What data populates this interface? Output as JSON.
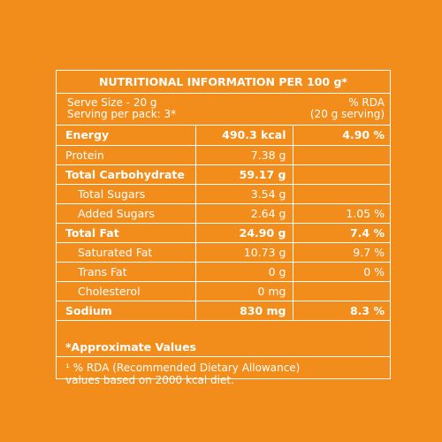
{
  "title": "NUTRITIONAL INFORMATION PER 100 g*",
  "header": {
    "serve_size": "Serve Size - 20 g",
    "serving_per_pack": "Serving per pack: 3*",
    "rda_label": "% RDA",
    "rda_basis": "(20 g serving)"
  },
  "rows": [
    {
      "name": "Energy",
      "amount": "490.3 kcal",
      "rda": "4.90 %",
      "bold": true,
      "sub": false
    },
    {
      "name": "Protein",
      "amount": "7.38 g",
      "rda": "",
      "bold": false,
      "sub": false
    },
    {
      "name": "Total Carbohydrate",
      "amount": "59.17 g",
      "rda": "",
      "bold": true,
      "sub": false
    },
    {
      "name": "Total Sugars",
      "amount": "3.54 g",
      "rda": "",
      "bold": false,
      "sub": true
    },
    {
      "name": "Added Sugars",
      "amount": "2.64 g",
      "rda": "1.05 %",
      "bold": false,
      "sub": true
    },
    {
      "name": "Total Fat",
      "amount": "24.90 g",
      "rda": "7.4 %",
      "bold": true,
      "sub": false
    },
    {
      "name": "Saturated Fat",
      "amount": "10.73 g",
      "rda": "9.7 %",
      "bold": false,
      "sub": true
    },
    {
      "name": "Trans Fat",
      "amount": "0 g",
      "rda": "0 %",
      "bold": false,
      "sub": true
    },
    {
      "name": "Cholesterol",
      "amount": "0 mg",
      "rda": "",
      "bold": false,
      "sub": true
    },
    {
      "name": "Sodium",
      "amount": "830 mg",
      "rda": "8.3 %",
      "bold": true,
      "sub": false
    }
  ],
  "approx_note": "*Approximate Values",
  "footnote_line1": "¹ % RDA (Recommended Dietary Allowance)",
  "footnote_line2": "values based on 2000 kcal diet.",
  "colors": {
    "background": "#F28C1B",
    "text": "#FFFFFF"
  }
}
